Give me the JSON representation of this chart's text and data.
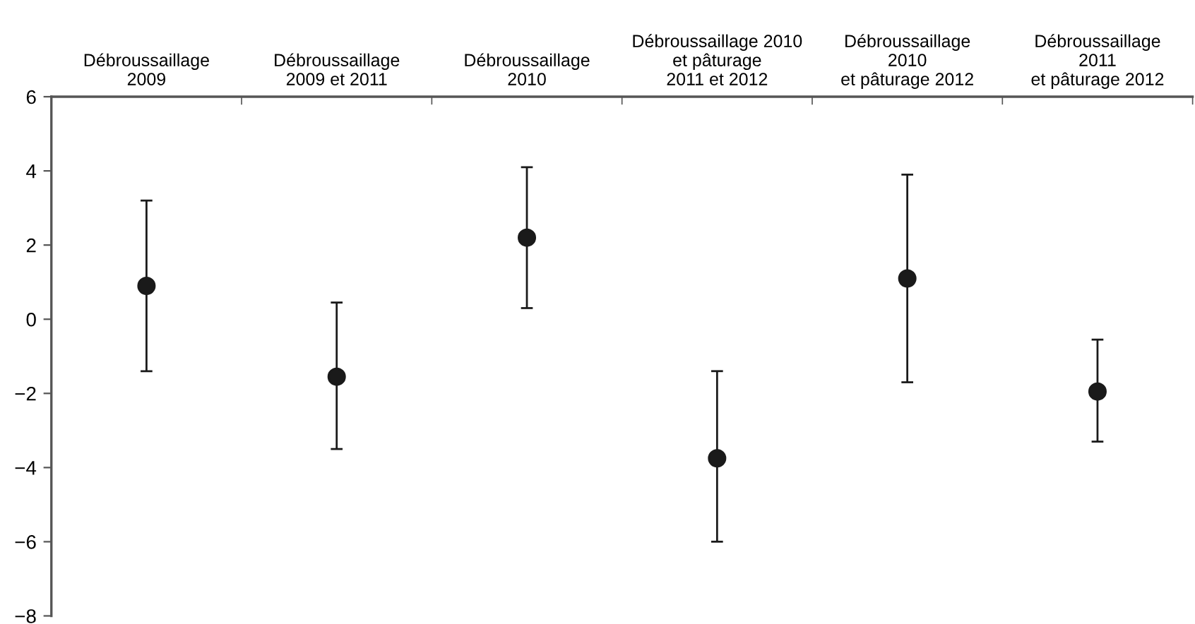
{
  "chart_data": {
    "type": "scatter",
    "categories": [
      "Débroussaillage\n2009",
      "Débroussaillage\n2009 et 2011",
      "Débroussaillage\n2010",
      "Débroussaillage 2010\net pâturage\n2011 et 2012",
      "Débroussaillage\n2010\net pâturage 2012",
      "Débroussaillage\n2011\net pâturage 2012"
    ],
    "series": [
      {
        "color": "#1a1a1a",
        "values": [
          0.9,
          -1.55,
          2.2,
          -3.75,
          1.1,
          -1.95
        ],
        "errors": [
          [
            -1.4,
            3.2
          ],
          [
            -3.5,
            0.45
          ],
          [
            0.3,
            4.1
          ],
          [
            -6.0,
            -1.4
          ],
          [
            -1.7,
            3.9
          ],
          [
            -3.3,
            -0.55
          ]
        ]
      }
    ],
    "marker": "circle",
    "ylim": [
      -8,
      6
    ],
    "yticks": [
      {
        "value": -8,
        "label": "−8"
      },
      {
        "value": -6,
        "label": "−6"
      },
      {
        "value": -4,
        "label": "−4"
      },
      {
        "value": -2,
        "label": "−2"
      },
      0,
      2,
      4,
      6
    ],
    "grid": false,
    "legend": false
  }
}
